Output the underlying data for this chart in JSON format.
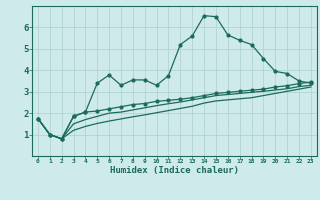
{
  "xlabel": "Humidex (Indice chaleur)",
  "bg_color": "#ceeaea",
  "grid_color": "#aed0d0",
  "line_color": "#1a6b5a",
  "xlim": [
    -0.5,
    23.5
  ],
  "ylim": [
    0,
    7
  ],
  "xticks": [
    0,
    1,
    2,
    3,
    4,
    5,
    6,
    7,
    8,
    9,
    10,
    11,
    12,
    13,
    14,
    15,
    16,
    17,
    18,
    19,
    20,
    21,
    22,
    23
  ],
  "yticks": [
    1,
    2,
    3,
    4,
    5,
    6
  ],
  "line1_x": [
    0,
    1,
    2,
    3,
    4,
    5,
    6,
    7,
    8,
    9,
    10,
    11,
    12,
    13,
    14,
    15,
    16,
    17,
    18,
    19,
    20,
    21,
    22,
    23
  ],
  "line1_y": [
    1.75,
    1.0,
    0.8,
    1.85,
    2.05,
    3.4,
    3.78,
    3.3,
    3.55,
    3.55,
    3.3,
    3.75,
    5.2,
    5.6,
    6.55,
    6.5,
    5.65,
    5.4,
    5.2,
    4.55,
    3.95,
    3.85,
    3.5,
    3.4
  ],
  "line2_x": [
    0,
    1,
    2,
    3,
    4,
    5,
    6,
    7,
    8,
    9,
    10,
    11,
    12,
    13,
    14,
    15,
    16,
    17,
    18,
    19,
    20,
    21,
    22,
    23
  ],
  "line2_y": [
    1.75,
    1.0,
    0.8,
    1.85,
    2.05,
    2.1,
    2.2,
    2.3,
    2.4,
    2.45,
    2.55,
    2.6,
    2.65,
    2.72,
    2.82,
    2.92,
    2.97,
    3.02,
    3.07,
    3.12,
    3.22,
    3.28,
    3.38,
    3.45
  ],
  "line3_x": [
    0,
    1,
    2,
    3,
    4,
    5,
    6,
    7,
    8,
    9,
    10,
    11,
    12,
    13,
    14,
    15,
    16,
    17,
    18,
    19,
    20,
    21,
    22,
    23
  ],
  "line3_y": [
    1.75,
    1.0,
    0.8,
    1.5,
    1.7,
    1.85,
    2.0,
    2.05,
    2.15,
    2.25,
    2.35,
    2.44,
    2.52,
    2.62,
    2.72,
    2.82,
    2.87,
    2.92,
    2.97,
    3.02,
    3.08,
    3.14,
    3.24,
    3.3
  ],
  "line4_x": [
    0,
    1,
    2,
    3,
    4,
    5,
    6,
    7,
    8,
    9,
    10,
    11,
    12,
    13,
    14,
    15,
    16,
    17,
    18,
    19,
    20,
    21,
    22,
    23
  ],
  "line4_y": [
    1.75,
    1.0,
    0.8,
    1.2,
    1.38,
    1.52,
    1.63,
    1.73,
    1.83,
    1.92,
    2.02,
    2.12,
    2.22,
    2.32,
    2.47,
    2.57,
    2.62,
    2.67,
    2.72,
    2.82,
    2.92,
    3.02,
    3.12,
    3.22
  ]
}
